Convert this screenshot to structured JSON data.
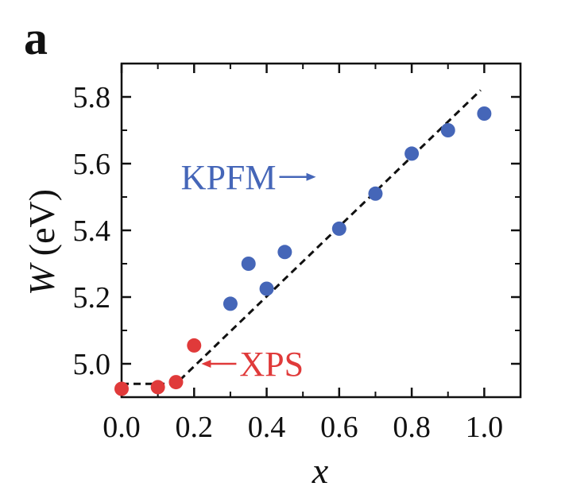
{
  "panel_label": "a",
  "chart_data": {
    "type": "scatter",
    "xlabel": "x",
    "ylabel_var": "W",
    "ylabel_unit": "(eV)",
    "xlim": [
      0.0,
      1.1
    ],
    "ylim": [
      4.9,
      5.9
    ],
    "x_ticks": [
      0.0,
      0.2,
      0.4,
      0.6,
      0.8,
      1.0
    ],
    "x_tick_labels": [
      "0.0",
      "0.2",
      "0.4",
      "0.6",
      "0.8",
      "1.0"
    ],
    "y_ticks": [
      5.0,
      5.2,
      5.4,
      5.6,
      5.8
    ],
    "y_tick_labels": [
      "5.0",
      "5.2",
      "5.4",
      "5.6",
      "5.8"
    ],
    "grid": false,
    "series": [
      {
        "name": "XPS",
        "color": "#e03a3a",
        "x": [
          0.0,
          0.1,
          0.15,
          0.2
        ],
        "y": [
          4.925,
          4.93,
          4.945,
          5.055
        ]
      },
      {
        "name": "KPFM",
        "color": "#4566b8",
        "x": [
          0.3,
          0.35,
          0.4,
          0.45,
          0.6,
          0.7,
          0.8,
          0.9,
          1.0
        ],
        "y": [
          5.18,
          5.3,
          5.225,
          5.335,
          5.405,
          5.51,
          5.63,
          5.7,
          5.75
        ]
      }
    ],
    "fit_line": {
      "style": "dashed",
      "color": "#111111",
      "points": [
        [
          0.0,
          4.94
        ],
        [
          0.15,
          4.94
        ],
        [
          0.99,
          5.82
        ]
      ]
    },
    "annotations": [
      {
        "text": "KPFM",
        "series": "KPFM",
        "arrow": "right",
        "color": "#4566b8",
        "anchor_x": 0.435,
        "anchor_y": 5.56
      },
      {
        "text": "XPS",
        "series": "XPS",
        "arrow": "left",
        "color": "#e03a3a",
        "anchor_x": 0.22,
        "anchor_y": 5.0
      }
    ]
  }
}
